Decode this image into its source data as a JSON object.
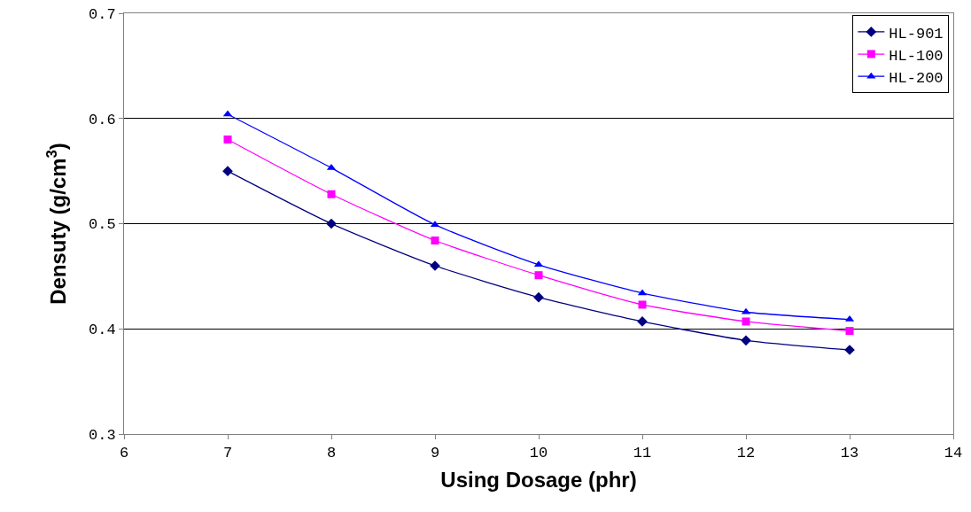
{
  "chart_data": {
    "type": "line",
    "xlabel": "Using Dosage (phr)",
    "ylabel": "Densuty (g/cm$^{3}$)",
    "x": [
      7,
      8,
      9,
      10,
      11,
      12,
      13
    ],
    "series": [
      {
        "name": "HL-901",
        "color": "#000080",
        "marker": "diamond",
        "values": [
          0.55,
          0.5,
          0.46,
          0.43,
          0.407,
          0.389,
          0.38
        ]
      },
      {
        "name": "HL-100",
        "color": "#ff00ff",
        "marker": "square",
        "values": [
          0.58,
          0.528,
          0.484,
          0.451,
          0.423,
          0.407,
          0.398
        ]
      },
      {
        "name": "HL-200",
        "color": "#0000ff",
        "marker": "triangle",
        "values": [
          0.604,
          0.553,
          0.499,
          0.461,
          0.434,
          0.416,
          0.409
        ]
      }
    ],
    "xlim": [
      6,
      14
    ],
    "xticks": [
      6,
      7,
      8,
      9,
      10,
      11,
      12,
      13,
      14
    ],
    "ylim": [
      0.3,
      0.7
    ],
    "yticks": [
      {
        "value": 0.3,
        "label": "0.3"
      },
      {
        "value": 0.4,
        "label": "0.4"
      },
      {
        "value": 0.5,
        "label": "0.5"
      },
      {
        "value": 0.6,
        "label": "0.6"
      },
      {
        "value": 0.7,
        "label": "0.7"
      }
    ],
    "grid": "y",
    "legend": "top right"
  }
}
